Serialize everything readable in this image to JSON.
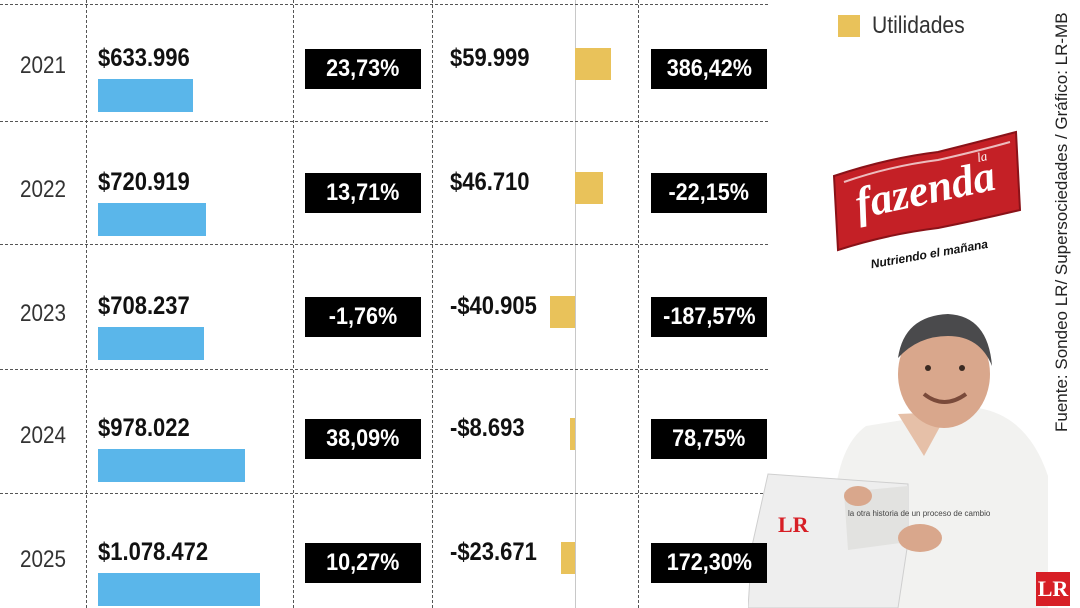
{
  "legend": {
    "label": "Utilidades"
  },
  "source": "Fuente: Sondeo LR/ Supersociedades / Gráfico: LR-MB",
  "logo": {
    "brand": "fazenda",
    "sup": "la",
    "tagline": "Nutriendo el mañana"
  },
  "newspaper": {
    "masthead": "LR",
    "headline": "la otra historia de un proceso de cambio"
  },
  "corner_mark": "LR",
  "colors": {
    "revenue_bar": "#5ab6ea",
    "profit_bar": "#e9c25a",
    "box": "#000000"
  },
  "chart_data": {
    "type": "table",
    "categories": [
      "2021",
      "2022",
      "2023",
      "2024",
      "2025"
    ],
    "series": [
      {
        "values": [
          633996,
          720919,
          708237,
          978022,
          1078472
        ]
      },
      {
        "name": "Utilidades",
        "values": [
          59999,
          46710,
          -40905,
          -8693,
          -23671
        ]
      }
    ],
    "rows": [
      {
        "year": "2021",
        "revenue": "$633.996",
        "revenue_change": "23,73%",
        "profit": "$59.999",
        "profit_change": "386,42%"
      },
      {
        "year": "2022",
        "revenue": "$720.919",
        "revenue_change": "13,71%",
        "profit": "$46.710",
        "profit_change": "-22,15%"
      },
      {
        "year": "2023",
        "revenue": "$708.237",
        "revenue_change": "-1,76%",
        "profit": "-$40.905",
        "profit_change": "-187,57%"
      },
      {
        "year": "2024",
        "revenue": "$978.022",
        "revenue_change": "38,09%",
        "profit": "-$8.693",
        "profit_change": "78,75%"
      },
      {
        "year": "2025",
        "revenue": "$1.078.472",
        "revenue_change": "10,27%",
        "profit": "-$23.671",
        "profit_change": "172,30%"
      }
    ]
  }
}
